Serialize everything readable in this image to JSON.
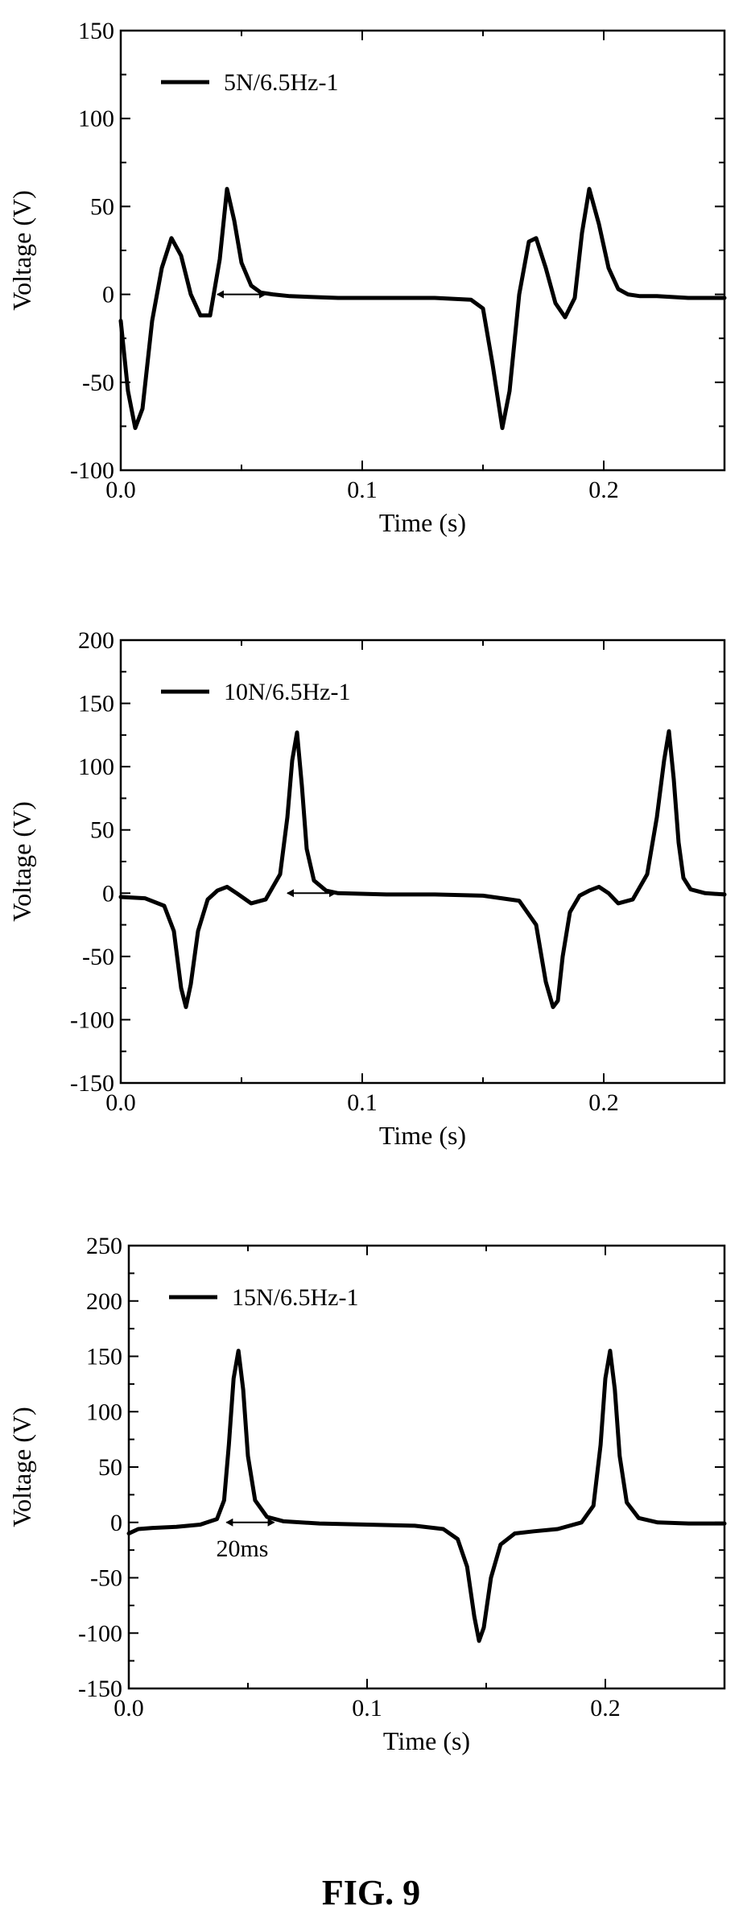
{
  "figure": {
    "caption": "FIG. 9"
  },
  "chart_data": [
    {
      "type": "line",
      "xlabel": "Time (s)",
      "ylabel": "Voltage (V)",
      "xlim": [
        0,
        0.25
      ],
      "ylim": [
        -100,
        150
      ],
      "xticks": [
        0.0,
        0.1,
        0.2
      ],
      "xtick_labels": [
        "0.0",
        "0.1",
        "0.2"
      ],
      "yticks": [
        -100,
        -50,
        0,
        50,
        100,
        150
      ],
      "ytick_labels": [
        "-100",
        "-50",
        "0",
        "50",
        "100",
        "150"
      ],
      "grid": false,
      "legend_position": "top-left",
      "annotation_text": "",
      "annotation_arrow": {
        "x_start": 0.04,
        "x_end": 0.06,
        "y": 0
      },
      "series": [
        {
          "name": "5N/6.5Hz-1",
          "color": "#000000",
          "x": [
            0.0,
            0.003,
            0.006,
            0.009,
            0.013,
            0.017,
            0.021,
            0.025,
            0.029,
            0.033,
            0.037,
            0.041,
            0.044,
            0.047,
            0.05,
            0.054,
            0.058,
            0.063,
            0.07,
            0.09,
            0.11,
            0.13,
            0.145,
            0.15,
            0.154,
            0.158,
            0.161,
            0.165,
            0.169,
            0.172,
            0.176,
            0.18,
            0.184,
            0.188,
            0.191,
            0.194,
            0.198,
            0.202,
            0.206,
            0.21,
            0.215,
            0.222,
            0.235,
            0.25
          ],
          "y": [
            -15,
            -55,
            -76,
            -65,
            -15,
            15,
            32,
            22,
            0,
            -12,
            -12,
            20,
            60,
            42,
            18,
            5,
            1,
            0,
            -1,
            -2,
            -2,
            -2,
            -3,
            -8,
            -40,
            -76,
            -55,
            0,
            30,
            32,
            15,
            -5,
            -13,
            -2,
            35,
            60,
            40,
            15,
            3,
            0,
            -1,
            -1,
            -2,
            -2
          ]
        }
      ]
    },
    {
      "type": "line",
      "xlabel": "Time (s)",
      "ylabel": "Voltage (V)",
      "xlim": [
        0,
        0.25
      ],
      "ylim": [
        -150,
        200
      ],
      "xticks": [
        0.0,
        0.1,
        0.2
      ],
      "xtick_labels": [
        "0.0",
        "0.1",
        "0.2"
      ],
      "yticks": [
        -150,
        -100,
        -50,
        0,
        50,
        100,
        150,
        200
      ],
      "ytick_labels": [
        "-150",
        "-100",
        "-50",
        "0",
        "50",
        "100",
        "150",
        "200"
      ],
      "grid": false,
      "legend_position": "top-left",
      "annotation_text": "",
      "annotation_arrow": {
        "x_start": 0.069,
        "x_end": 0.089,
        "y": 0
      },
      "series": [
        {
          "name": "10N/6.5Hz-1",
          "color": "#000000",
          "x": [
            0.0,
            0.01,
            0.018,
            0.022,
            0.025,
            0.027,
            0.029,
            0.032,
            0.036,
            0.04,
            0.044,
            0.048,
            0.054,
            0.06,
            0.066,
            0.069,
            0.071,
            0.073,
            0.075,
            0.077,
            0.08,
            0.085,
            0.09,
            0.11,
            0.13,
            0.15,
            0.165,
            0.172,
            0.176,
            0.179,
            0.181,
            0.183,
            0.186,
            0.19,
            0.194,
            0.198,
            0.202,
            0.206,
            0.212,
            0.218,
            0.222,
            0.225,
            0.227,
            0.229,
            0.231,
            0.233,
            0.236,
            0.242,
            0.25
          ],
          "y": [
            -3,
            -4,
            -10,
            -30,
            -75,
            -90,
            -72,
            -30,
            -5,
            2,
            5,
            0,
            -8,
            -5,
            15,
            60,
            105,
            127,
            85,
            35,
            10,
            2,
            0,
            -1,
            -1,
            -2,
            -6,
            -25,
            -70,
            -90,
            -85,
            -50,
            -15,
            -2,
            2,
            5,
            0,
            -8,
            -5,
            15,
            60,
            105,
            128,
            90,
            40,
            12,
            3,
            0,
            -1
          ]
        }
      ]
    },
    {
      "type": "line",
      "xlabel": "Time (s)",
      "ylabel": "Voltage (V)",
      "xlim": [
        0,
        0.25
      ],
      "ylim": [
        -150,
        250
      ],
      "xticks": [
        0.0,
        0.1,
        0.2
      ],
      "xtick_labels": [
        "0.0",
        "0.1",
        "0.2"
      ],
      "yticks": [
        -150,
        -100,
        -50,
        0,
        50,
        100,
        150,
        200,
        250
      ],
      "ytick_labels": [
        "-150",
        "-100",
        "-50",
        "0",
        "50",
        "100",
        "150",
        "200",
        "250"
      ],
      "grid": false,
      "legend_position": "top-left",
      "annotation_text": "20ms",
      "annotation_arrow": {
        "x_start": 0.041,
        "x_end": 0.061,
        "y": 0
      },
      "series": [
        {
          "name": "15N/6.5Hz-1",
          "color": "#000000",
          "x": [
            0.0,
            0.004,
            0.01,
            0.02,
            0.03,
            0.037,
            0.04,
            0.042,
            0.044,
            0.046,
            0.048,
            0.05,
            0.053,
            0.058,
            0.065,
            0.08,
            0.1,
            0.12,
            0.132,
            0.138,
            0.142,
            0.145,
            0.147,
            0.149,
            0.152,
            0.156,
            0.162,
            0.17,
            0.18,
            0.19,
            0.195,
            0.198,
            0.2,
            0.202,
            0.204,
            0.206,
            0.209,
            0.214,
            0.222,
            0.235,
            0.25
          ],
          "y": [
            -10,
            -6,
            -5,
            -4,
            -2,
            3,
            20,
            70,
            130,
            155,
            120,
            60,
            20,
            5,
            1,
            -1,
            -2,
            -3,
            -6,
            -15,
            -40,
            -85,
            -107,
            -95,
            -50,
            -20,
            -10,
            -8,
            -6,
            0,
            15,
            70,
            130,
            155,
            120,
            60,
            18,
            4,
            0,
            -1,
            -1
          ]
        }
      ]
    }
  ]
}
